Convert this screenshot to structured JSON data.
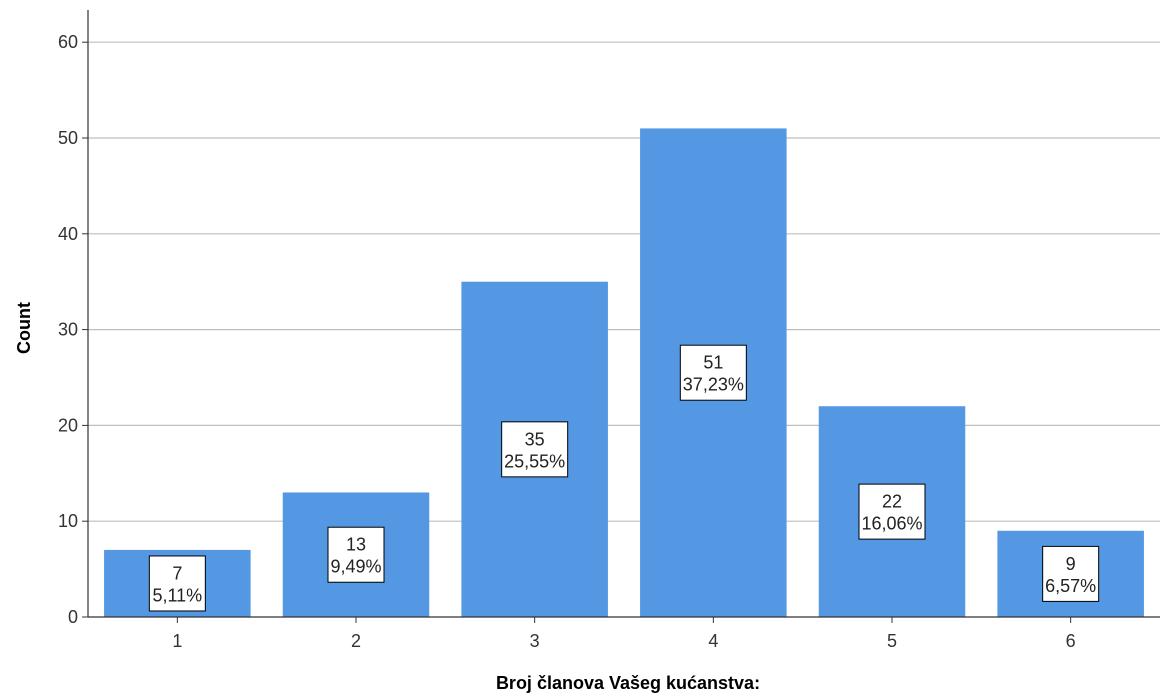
{
  "chart_data": {
    "type": "bar",
    "title": "",
    "xlabel": "Broj članova Vašeg kućanstva:",
    "ylabel": "Count",
    "categories": [
      "1",
      "2",
      "3",
      "4",
      "5",
      "6"
    ],
    "values": [
      7,
      13,
      35,
      51,
      22,
      9
    ],
    "count_labels": [
      "7",
      "13",
      "35",
      "51",
      "22",
      "9"
    ],
    "percent_labels": [
      "5,11%",
      "9,49%",
      "25,55%",
      "37,23%",
      "16,06%",
      "6,57%"
    ],
    "ylim": [
      0,
      63
    ],
    "yticks": [
      0,
      10,
      20,
      30,
      40,
      50,
      60
    ],
    "grid": true,
    "legend": "none",
    "colors": {
      "bar": "#5497E3",
      "grid": "#BFBFBF",
      "axis": "#333333",
      "label_border": "#000000"
    }
  }
}
